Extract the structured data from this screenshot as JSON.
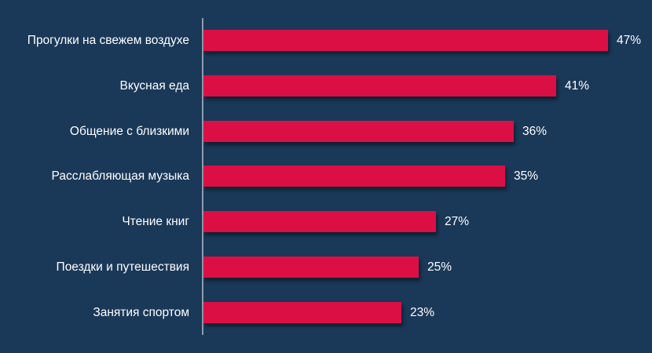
{
  "colors": {
    "background": "#1a3858",
    "bar": "#dc0f45",
    "axis": "#8d9cae",
    "text": "#ffffff"
  },
  "chart_data": {
    "type": "bar",
    "orientation": "horizontal",
    "title": "",
    "xlabel": "",
    "ylabel": "",
    "categories": [
      "Прогулки на свежем воздухе",
      "Вкусная еда",
      "Общение с близкими",
      "Расслабляющая музыка",
      "Чтение книг",
      "Поездки и путешествия",
      "Занятия спортом"
    ],
    "values": [
      47,
      41,
      36,
      35,
      27,
      25,
      23
    ],
    "value_labels": [
      "47%",
      "41%",
      "36%",
      "35%",
      "27%",
      "25%",
      "23%"
    ],
    "unit": "%",
    "grid": false,
    "legend": null
  },
  "rows": [
    {
      "label": "Прогулки на свежем воздухе",
      "value": 47,
      "value_label": "47%"
    },
    {
      "label": "Вкусная еда",
      "value": 41,
      "value_label": "41%"
    },
    {
      "label": "Общение с близкими",
      "value": 36,
      "value_label": "36%"
    },
    {
      "label": "Расслабляющая музыка",
      "value": 35,
      "value_label": "35%"
    },
    {
      "label": "Чтение книг",
      "value": 27,
      "value_label": "27%"
    },
    {
      "label": "Поездки и путешествия",
      "value": 25,
      "value_label": "25%"
    },
    {
      "label": "Занятия спортом",
      "value": 23,
      "value_label": "23%"
    }
  ]
}
